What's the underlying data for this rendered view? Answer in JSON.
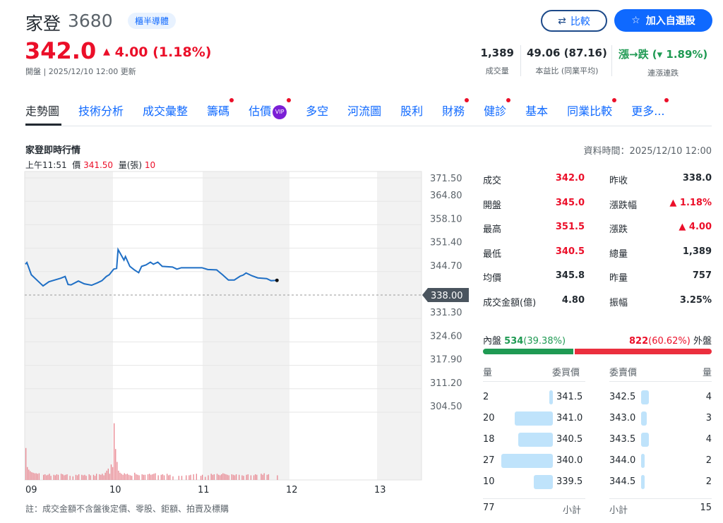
{
  "header": {
    "name": "家登",
    "code": "3680",
    "sector": "櫃半導體",
    "price": "342.0",
    "change": "4.00",
    "change_pct": "(1.18%)",
    "status": "開盤 | 2025/12/10 12:00 更新",
    "compare_label": "比較",
    "add_watchlist_label": "加入自選股",
    "stats": [
      {
        "value": "1,389",
        "label": "成交量"
      },
      {
        "value": "49.06 (87.16)",
        "label": "本益比 (同業平均)"
      },
      {
        "value": "漲→跌 (▾ 1.89%)",
        "label": "連漲連跌"
      }
    ]
  },
  "tabs": [
    {
      "label": "走勢圖",
      "active": true
    },
    {
      "label": "技術分析"
    },
    {
      "label": "成交彙整"
    },
    {
      "label": "籌碼",
      "dot": true
    },
    {
      "label": "估價",
      "vip": "VIP",
      "dot": true
    },
    {
      "label": "多空"
    },
    {
      "label": "河流圖"
    },
    {
      "label": "股利"
    },
    {
      "label": "財務",
      "dot": true
    },
    {
      "label": "健診",
      "dot": true
    },
    {
      "label": "基本"
    },
    {
      "label": "同業比較",
      "dot": true
    },
    {
      "label": "更多...",
      "dot": true
    }
  ],
  "section": {
    "title": "家登即時行情",
    "data_time": "資料時間：2025/12/10 12:00",
    "tick_time": "上午11:51",
    "tick_price_label": "價",
    "tick_price": "341.50",
    "tick_vol_label": "量(張)",
    "tick_vol": "10"
  },
  "colors": {
    "up": "#eb0f29",
    "down": "#1f9a53",
    "line": "#1f6fc5",
    "volume": "#e8858f",
    "accent": "#0f69ff"
  },
  "chart_data": {
    "type": "line",
    "ylim": [
      304.5,
      371.5
    ],
    "yticks": [
      "371.50",
      "364.80",
      "358.10",
      "351.40",
      "344.70",
      "338.00",
      "331.30",
      "324.60",
      "317.90",
      "311.20",
      "304.50"
    ],
    "reference": 338.0,
    "reference_label": "338.00",
    "xticks": [
      "09",
      "10",
      "11",
      "12",
      "13"
    ],
    "price": [
      [
        "09:00",
        346.8
      ],
      [
        "09:01",
        347.3
      ],
      [
        "09:04",
        343.8
      ],
      [
        "09:09",
        341.8
      ],
      [
        "09:12",
        340.6
      ],
      [
        "09:16",
        341.8
      ],
      [
        "09:24",
        342.8
      ],
      [
        "09:27",
        343.3
      ],
      [
        "09:29",
        341.0
      ],
      [
        "09:31",
        340.9
      ],
      [
        "09:36",
        342.0
      ],
      [
        "09:40",
        341.2
      ],
      [
        "09:45",
        340.8
      ],
      [
        "09:49",
        341.5
      ],
      [
        "09:52",
        342.1
      ],
      [
        "09:55",
        343.3
      ],
      [
        "09:57",
        343.8
      ],
      [
        "10:00",
        345.4
      ],
      [
        "10:02",
        345.6
      ],
      [
        "10:03",
        351.0
      ],
      [
        "10:05",
        349.5
      ],
      [
        "10:07",
        348.0
      ],
      [
        "10:08",
        349.0
      ],
      [
        "10:11",
        346.2
      ],
      [
        "10:14",
        345.2
      ],
      [
        "10:17",
        344.4
      ],
      [
        "10:19",
        346.2
      ],
      [
        "10:22",
        346.6
      ],
      [
        "10:25",
        347.4
      ],
      [
        "10:27",
        346.8
      ],
      [
        "10:30",
        347.4
      ],
      [
        "10:33",
        346.2
      ],
      [
        "10:40",
        346.0
      ],
      [
        "10:43",
        345.4
      ],
      [
        "10:46",
        345.8
      ],
      [
        "11:00",
        345.8
      ],
      [
        "11:04",
        345.3
      ],
      [
        "11:10",
        345.2
      ],
      [
        "11:14",
        343.8
      ],
      [
        "11:18",
        342.3
      ],
      [
        "11:22",
        342.3
      ],
      [
        "11:26",
        343.4
      ],
      [
        "11:28",
        343.7
      ],
      [
        "11:30",
        344.3
      ],
      [
        "11:34",
        343.5
      ],
      [
        "11:38",
        342.9
      ],
      [
        "11:44",
        342.7
      ],
      [
        "11:47",
        342.1
      ],
      [
        "11:51",
        342.2
      ]
    ],
    "volume": [
      62,
      25,
      20,
      17,
      15,
      14,
      13,
      13,
      12,
      13,
      0,
      0,
      10,
      11,
      9,
      10,
      12,
      8,
      0,
      10,
      9,
      11,
      10,
      0,
      12,
      11,
      9,
      10,
      11,
      0,
      8,
      0,
      7,
      0,
      10,
      9,
      11,
      0,
      10,
      9,
      10,
      8,
      0,
      11,
      9,
      0,
      10,
      8,
      12,
      0,
      11,
      10,
      12,
      9,
      14,
      18,
      22,
      12,
      30,
      25,
      110,
      60,
      35,
      18,
      14,
      12,
      10,
      13,
      11,
      12,
      10,
      9,
      8,
      0,
      14,
      11,
      10,
      9,
      0,
      11,
      10,
      10,
      0,
      11,
      12,
      10,
      11,
      12,
      13,
      0,
      9,
      0,
      10,
      11,
      9,
      0,
      12,
      9,
      10,
      0,
      7,
      0,
      0,
      0,
      8,
      0,
      8,
      0,
      0,
      9,
      0,
      9,
      10,
      0,
      11,
      0,
      12,
      0,
      0,
      8,
      10,
      0,
      6,
      0,
      9,
      0,
      12,
      10,
      11,
      0,
      12,
      10,
      9,
      11,
      13,
      12,
      11,
      10,
      9,
      0,
      11,
      10,
      9,
      11,
      0,
      10,
      0,
      9,
      8,
      0,
      10,
      11,
      0,
      9,
      0,
      9,
      11,
      10,
      0,
      0,
      12,
      10,
      13,
      0,
      10,
      11,
      0,
      0,
      0,
      0,
      0,
      9
    ]
  },
  "quote": {
    "left": [
      {
        "label": "成交",
        "value": "342.0",
        "color": "up"
      },
      {
        "label": "開盤",
        "value": "345.0",
        "color": "up"
      },
      {
        "label": "最高",
        "value": "351.5",
        "color": "up"
      },
      {
        "label": "最低",
        "value": "340.5",
        "color": "up"
      },
      {
        "label": "均價",
        "value": "345.8"
      },
      {
        "label": "成交金額(億)",
        "value": "4.80"
      }
    ],
    "right": [
      {
        "label": "昨收",
        "value": "338.0"
      },
      {
        "label": "漲跌幅",
        "value": "▲ 1.18%",
        "color": "up"
      },
      {
        "label": "漲跌",
        "value": "▲ 4.00",
        "color": "up"
      },
      {
        "label": "總量",
        "value": "1,389"
      },
      {
        "label": "昨量",
        "value": "757"
      },
      {
        "label": "振幅",
        "value": "3.25%"
      }
    ]
  },
  "inout": {
    "in_label": "內盤",
    "in_value": "534",
    "in_pct": "(39.38%)",
    "out_value": "822",
    "out_pct": "(60.62%)",
    "out_label": "外盤",
    "in_fraction": 0.3938
  },
  "orderbook": {
    "h_vol": "量",
    "h_bid": "委買價",
    "h_ask": "委賣價",
    "h_vol2": "量",
    "bids": [
      {
        "vol": "2",
        "price": "341.5"
      },
      {
        "vol": "20",
        "price": "341.0"
      },
      {
        "vol": "18",
        "price": "340.5"
      },
      {
        "vol": "27",
        "price": "340.0"
      },
      {
        "vol": "10",
        "price": "339.5"
      }
    ],
    "asks": [
      {
        "price": "342.5",
        "vol": "4"
      },
      {
        "price": "343.0",
        "vol": "3"
      },
      {
        "price": "343.5",
        "vol": "4"
      },
      {
        "price": "344.0",
        "vol": "2"
      },
      {
        "price": "344.5",
        "vol": "2"
      }
    ],
    "bid_total": "77",
    "bid_total_label": "小計",
    "ask_total_label": "小計",
    "ask_total": "15"
  },
  "footnote": "註：成交金額不含盤後定價、零股、鉅額、拍賣及標購"
}
